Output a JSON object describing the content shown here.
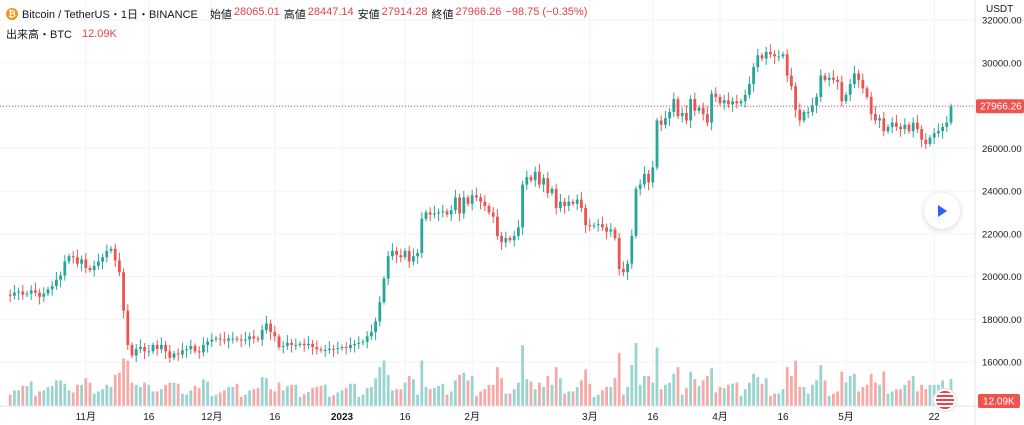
{
  "header": {
    "symbol": "Bitcoin / TetherUS・1日・BINANCE",
    "coin_icon": "bitcoin-icon",
    "open_label": "始値",
    "open": "28065.01",
    "high_label": "高値",
    "high": "28447.14",
    "low_label": "安値",
    "low": "27914.28",
    "close_label": "終値",
    "close": "27966.26",
    "change": "−98.75 (−0.35%)",
    "volume_label": "出来高・BTC",
    "volume_value": "12.09K"
  },
  "currency": "USDT",
  "last_price_label": "27966.26",
  "last_volume_label": "12.09K",
  "colors": {
    "up": "#26a69a",
    "down": "#ef5350",
    "up_vol": "#9ad4cf",
    "down_vol": "#f7a9a7",
    "last": "#ef5350"
  },
  "chart_data": {
    "type": "candlestick",
    "ylim": [
      15000,
      33000
    ],
    "y_ticks": [
      16000,
      18000,
      20000,
      22000,
      24000,
      26000,
      28000,
      30000,
      32000
    ],
    "y_tick_labels": [
      "16000.00",
      "18000.00",
      "20000.00",
      "22000.00",
      "24000.00",
      "26000.00",
      "28000.00",
      "30000.00",
      "32000.00"
    ],
    "x_tick_labels": [
      {
        "day": 19,
        "label": "11月"
      },
      {
        "day": 34,
        "label": "16"
      },
      {
        "day": 49,
        "label": "12月"
      },
      {
        "day": 64,
        "label": "16"
      },
      {
        "day": 80,
        "label": "2023"
      },
      {
        "day": 95,
        "label": "16"
      },
      {
        "day": 111,
        "label": "2月"
      },
      {
        "day": 139,
        "label": "3月"
      },
      {
        "day": 154,
        "label": "16"
      },
      {
        "day": 170,
        "label": "4月"
      },
      {
        "day": 185,
        "label": "16"
      },
      {
        "day": 200,
        "label": "5月"
      },
      {
        "day": 221,
        "label": "22"
      }
    ],
    "last_price": 27966.26,
    "ohlc_path": [
      [
        0,
        19150
      ],
      [
        1,
        19100
      ],
      [
        2,
        19250
      ],
      [
        3,
        19300
      ],
      [
        4,
        19150
      ],
      [
        5,
        19200
      ],
      [
        6,
        19350
      ],
      [
        7,
        19250
      ],
      [
        8,
        19050
      ],
      [
        9,
        19200
      ],
      [
        10,
        19400
      ],
      [
        11,
        19550
      ],
      [
        12,
        19850
      ],
      [
        13,
        20050
      ],
      [
        14,
        20700
      ],
      [
        15,
        20950
      ],
      [
        16,
        20900
      ],
      [
        17,
        20600
      ],
      [
        18,
        20800
      ],
      [
        19,
        20400
      ],
      [
        20,
        20300
      ],
      [
        21,
        20500
      ],
      [
        22,
        20700
      ],
      [
        23,
        20900
      ],
      [
        24,
        21200
      ],
      [
        25,
        21300
      ],
      [
        26,
        20750
      ],
      [
        27,
        20200
      ],
      [
        28,
        18400
      ],
      [
        29,
        16800
      ],
      [
        30,
        16300
      ],
      [
        31,
        16600
      ],
      [
        32,
        16700
      ],
      [
        33,
        16500
      ],
      [
        34,
        16500
      ],
      [
        35,
        16800
      ],
      [
        36,
        16600
      ],
      [
        37,
        16800
      ],
      [
        38,
        16500
      ],
      [
        39,
        16200
      ],
      [
        40,
        16400
      ],
      [
        41,
        16350
      ],
      [
        42,
        16550
      ],
      [
        43,
        16600
      ],
      [
        44,
        16750
      ],
      [
        45,
        16500
      ],
      [
        46,
        16450
      ],
      [
        47,
        16800
      ],
      [
        48,
        16950
      ],
      [
        49,
        17050
      ],
      [
        50,
        17100
      ],
      [
        51,
        17050
      ],
      [
        52,
        17000
      ],
      [
        53,
        17100
      ],
      [
        54,
        17100
      ],
      [
        55,
        17050
      ],
      [
        56,
        17000
      ],
      [
        57,
        17050
      ],
      [
        58,
        17200
      ],
      [
        59,
        17100
      ],
      [
        60,
        17050
      ],
      [
        61,
        17500
      ],
      [
        62,
        17800
      ],
      [
        63,
        17400
      ],
      [
        64,
        17200
      ],
      [
        65,
        16700
      ],
      [
        66,
        16750
      ],
      [
        67,
        16900
      ],
      [
        68,
        16800
      ],
      [
        69,
        16800
      ],
      [
        70,
        16850
      ],
      [
        71,
        16780
      ],
      [
        72,
        16850
      ],
      [
        73,
        16700
      ],
      [
        74,
        16600
      ],
      [
        75,
        16550
      ],
      [
        76,
        16560
      ],
      [
        77,
        16620
      ],
      [
        78,
        16600
      ],
      [
        79,
        16650
      ],
      [
        80,
        16700
      ],
      [
        81,
        16650
      ],
      [
        82,
        16800
      ],
      [
        83,
        16850
      ],
      [
        84,
        16900
      ],
      [
        85,
        16950
      ],
      [
        86,
        17200
      ],
      [
        87,
        17400
      ],
      [
        88,
        17900
      ],
      [
        89,
        18800
      ],
      [
        90,
        19900
      ],
      [
        91,
        20950
      ],
      [
        92,
        21200
      ],
      [
        93,
        21000
      ],
      [
        94,
        20900
      ],
      [
        95,
        21200
      ],
      [
        96,
        20700
      ],
      [
        97,
        20950
      ],
      [
        98,
        21100
      ],
      [
        99,
        22700
      ],
      [
        100,
        23000
      ],
      [
        101,
        22900
      ],
      [
        102,
        22950
      ],
      [
        103,
        23000
      ],
      [
        104,
        23050
      ],
      [
        105,
        22900
      ],
      [
        106,
        23100
      ],
      [
        107,
        23700
      ],
      [
        108,
        22950
      ],
      [
        109,
        23700
      ],
      [
        110,
        23400
      ],
      [
        111,
        23800
      ],
      [
        112,
        23700
      ],
      [
        113,
        23500
      ],
      [
        114,
        23300
      ],
      [
        115,
        23000
      ],
      [
        116,
        22800
      ],
      [
        117,
        21900
      ],
      [
        118,
        21600
      ],
      [
        119,
        21800
      ],
      [
        120,
        21700
      ],
      [
        121,
        21900
      ],
      [
        122,
        22300
      ],
      [
        123,
        24300
      ],
      [
        124,
        24650
      ],
      [
        125,
        24500
      ],
      [
        126,
        24900
      ],
      [
        127,
        24300
      ],
      [
        128,
        24600
      ],
      [
        129,
        23900
      ],
      [
        130,
        24100
      ],
      [
        131,
        23200
      ],
      [
        132,
        23500
      ],
      [
        133,
        23300
      ],
      [
        134,
        23500
      ],
      [
        135,
        23400
      ],
      [
        136,
        23600
      ],
      [
        137,
        23200
      ],
      [
        138,
        22400
      ],
      [
        139,
        22350
      ],
      [
        140,
        22400
      ],
      [
        141,
        22450
      ],
      [
        142,
        22300
      ],
      [
        143,
        22100
      ],
      [
        144,
        22200
      ],
      [
        145,
        21800
      ],
      [
        146,
        20350
      ],
      [
        147,
        20200
      ],
      [
        148,
        20600
      ],
      [
        149,
        21900
      ],
      [
        150,
        24100
      ],
      [
        151,
        24300
      ],
      [
        152,
        24800
      ],
      [
        153,
        24400
      ],
      [
        154,
        25100
      ],
      [
        155,
        27300
      ],
      [
        156,
        27100
      ],
      [
        157,
        27400
      ],
      [
        158,
        27700
      ],
      [
        159,
        28300
      ],
      [
        160,
        27500
      ],
      [
        161,
        27650
      ],
      [
        162,
        27300
      ],
      [
        163,
        28300
      ],
      [
        164,
        27750
      ],
      [
        165,
        27900
      ],
      [
        166,
        27600
      ],
      [
        167,
        27200
      ],
      [
        168,
        28550
      ],
      [
        169,
        28400
      ],
      [
        170,
        28100
      ],
      [
        171,
        28250
      ],
      [
        172,
        28050
      ],
      [
        173,
        28200
      ],
      [
        174,
        28100
      ],
      [
        175,
        28200
      ],
      [
        176,
        28500
      ],
      [
        177,
        29000
      ],
      [
        178,
        29800
      ],
      [
        179,
        30350
      ],
      [
        180,
        30200
      ],
      [
        181,
        30500
      ],
      [
        182,
        30400
      ],
      [
        183,
        30300
      ],
      [
        184,
        30300
      ],
      [
        185,
        30400
      ],
      [
        186,
        29400
      ],
      [
        187,
        28900
      ],
      [
        188,
        27800
      ],
      [
        189,
        27300
      ],
      [
        190,
        27700
      ],
      [
        191,
        27700
      ],
      [
        192,
        28000
      ],
      [
        193,
        28400
      ],
      [
        194,
        29400
      ],
      [
        195,
        29200
      ],
      [
        196,
        29300
      ],
      [
        197,
        29200
      ],
      [
        198,
        29100
      ],
      [
        199,
        28200
      ],
      [
        200,
        28500
      ],
      [
        201,
        29000
      ],
      [
        202,
        29500
      ],
      [
        203,
        29200
      ],
      [
        204,
        28800
      ],
      [
        205,
        28400
      ],
      [
        206,
        27600
      ],
      [
        207,
        27300
      ],
      [
        208,
        27400
      ],
      [
        209,
        26800
      ],
      [
        210,
        27000
      ],
      [
        211,
        27200
      ],
      [
        212,
        27000
      ],
      [
        213,
        26900
      ],
      [
        214,
        27100
      ],
      [
        215,
        26800
      ],
      [
        216,
        27200
      ],
      [
        217,
        26900
      ],
      [
        218,
        26400
      ],
      [
        219,
        26200
      ],
      [
        220,
        26500
      ],
      [
        221,
        26700
      ],
      [
        222,
        26800
      ],
      [
        223,
        27000
      ],
      [
        224,
        27200
      ],
      [
        225,
        27966
      ]
    ],
    "volume_ylim": [
      0,
      95000
    ]
  }
}
